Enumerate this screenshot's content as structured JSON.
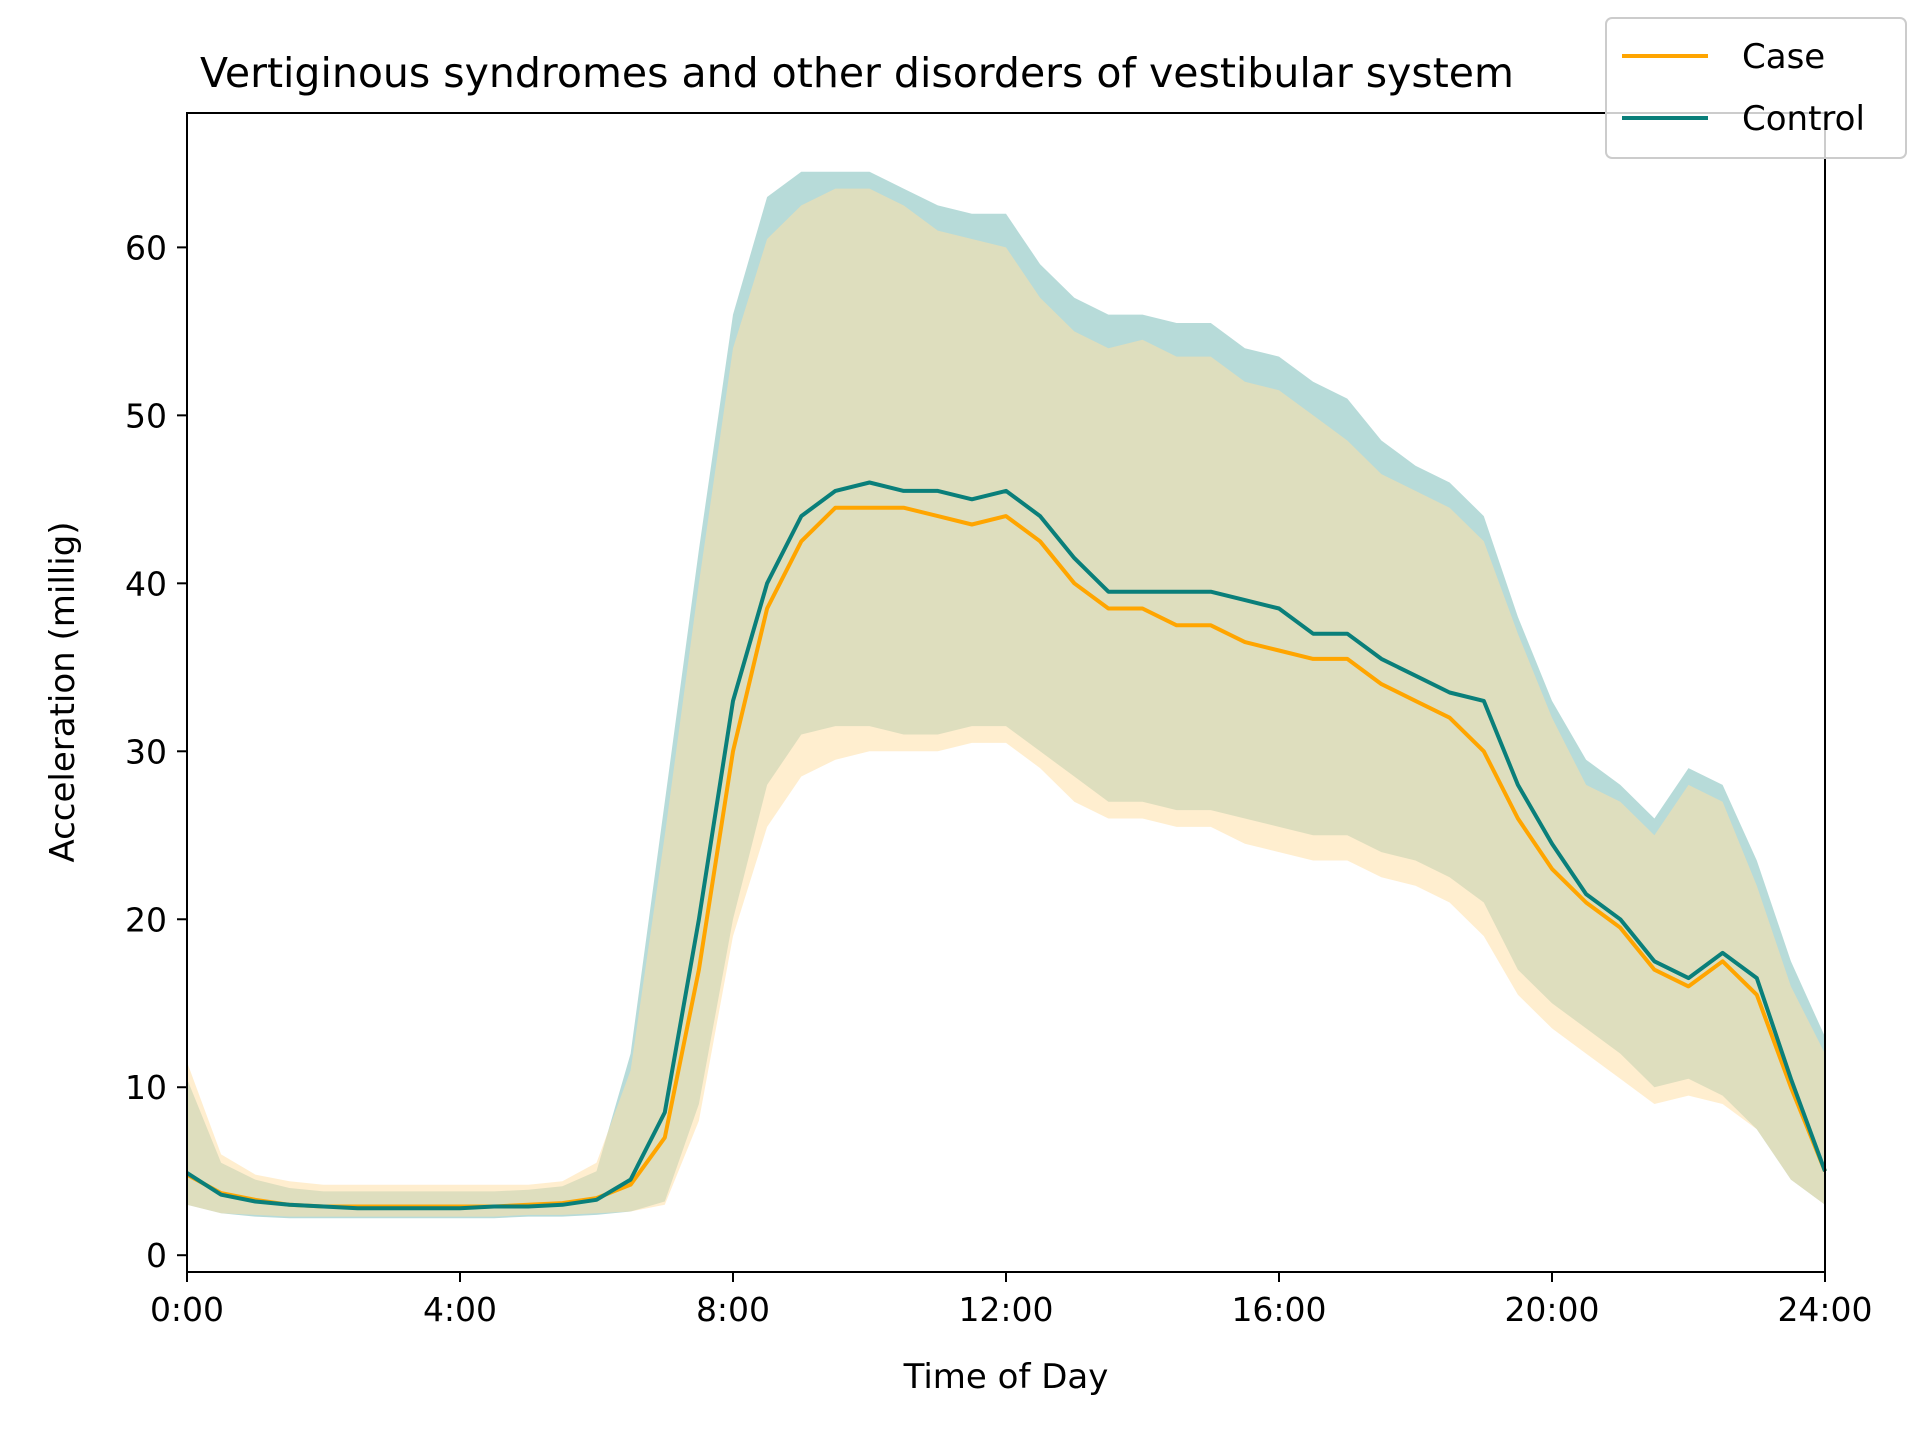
{
  "chart_data": {
    "type": "line",
    "title": "Vertiginous syndromes and other disorders of vestibular system",
    "xlabel": "Time of Day",
    "ylabel": "Acceleration (millig)",
    "xlim": [
      0,
      24
    ],
    "ylim": [
      -1,
      68
    ],
    "x_ticks": [
      0,
      4,
      8,
      12,
      16,
      20,
      24
    ],
    "x_tick_labels": [
      "0:00",
      "4:00",
      "8:00",
      "12:00",
      "16:00",
      "20:00",
      "24:00"
    ],
    "y_ticks": [
      0,
      10,
      20,
      30,
      40,
      50,
      60
    ],
    "y_tick_labels": [
      "0",
      "10",
      "20",
      "30",
      "40",
      "50",
      "60"
    ],
    "grid": false,
    "legend_position": "top-right",
    "x": [
      0,
      0.5,
      1,
      1.5,
      2,
      2.5,
      3,
      3.5,
      4,
      4.5,
      5,
      5.5,
      6,
      6.5,
      7,
      7.5,
      8,
      8.5,
      9,
      9.5,
      10,
      10.5,
      11,
      11.5,
      12,
      12.5,
      13,
      13.5,
      14,
      14.5,
      15,
      15.5,
      16,
      16.5,
      17,
      17.5,
      18,
      18.5,
      19,
      19.5,
      20,
      20.5,
      21,
      21.5,
      22,
      22.5,
      23,
      23.5,
      24
    ],
    "series": [
      {
        "name": "Case",
        "color": "#FFA500",
        "band_color": "#FFE0A8",
        "mean": [
          4.8,
          3.7,
          3.3,
          3.0,
          2.9,
          2.9,
          2.9,
          2.9,
          2.9,
          2.9,
          3.0,
          3.1,
          3.4,
          4.2,
          7.0,
          17.0,
          30.0,
          38.5,
          42.5,
          44.5,
          44.5,
          44.5,
          44.0,
          43.5,
          44.0,
          42.5,
          40.0,
          38.5,
          38.5,
          37.5,
          37.5,
          36.5,
          36.0,
          35.5,
          35.5,
          34.0,
          33.0,
          32.0,
          30.0,
          26.0,
          23.0,
          21.0,
          19.5,
          17.0,
          16.0,
          17.5,
          15.5,
          10.0,
          5.0
        ],
        "lower": [
          3.0,
          2.5,
          2.4,
          2.3,
          2.3,
          2.3,
          2.3,
          2.3,
          2.3,
          2.3,
          2.4,
          2.4,
          2.5,
          2.6,
          3.0,
          8.0,
          19.0,
          25.5,
          28.5,
          29.5,
          30.0,
          30.0,
          30.0,
          30.5,
          30.5,
          29.0,
          27.0,
          26.0,
          26.0,
          25.5,
          25.5,
          24.5,
          24.0,
          23.5,
          23.5,
          22.5,
          22.0,
          21.0,
          19.0,
          15.5,
          13.5,
          12.0,
          10.5,
          9.0,
          9.5,
          9.0,
          7.5,
          4.5,
          3.0
        ],
        "upper": [
          11.5,
          6.0,
          4.8,
          4.4,
          4.2,
          4.2,
          4.2,
          4.2,
          4.2,
          4.2,
          4.2,
          4.4,
          5.5,
          11.0,
          25.0,
          40.0,
          54.0,
          60.5,
          62.5,
          63.5,
          63.5,
          62.5,
          61.0,
          60.5,
          60.0,
          57.0,
          55.0,
          54.0,
          54.5,
          53.5,
          53.5,
          52.0,
          51.5,
          50.0,
          48.5,
          46.5,
          45.5,
          44.5,
          42.5,
          37.0,
          32.0,
          28.0,
          27.0,
          25.0,
          28.0,
          27.0,
          22.0,
          16.0,
          12.0
        ]
      },
      {
        "name": "Control",
        "color": "#0A7F7A",
        "band_color": "#9FCFCC",
        "mean": [
          4.9,
          3.6,
          3.2,
          3.0,
          2.9,
          2.8,
          2.8,
          2.8,
          2.8,
          2.9,
          2.9,
          3.0,
          3.3,
          4.5,
          8.5,
          20.0,
          33.0,
          40.0,
          44.0,
          45.5,
          46.0,
          45.5,
          45.5,
          45.0,
          45.5,
          44.0,
          41.5,
          39.5,
          39.5,
          39.5,
          39.5,
          39.0,
          38.5,
          37.0,
          37.0,
          35.5,
          34.5,
          33.5,
          33.0,
          28.0,
          24.5,
          21.5,
          20.0,
          17.5,
          16.5,
          18.0,
          16.5,
          10.5,
          5.0
        ],
        "lower": [
          3.0,
          2.5,
          2.3,
          2.2,
          2.2,
          2.2,
          2.2,
          2.2,
          2.2,
          2.2,
          2.3,
          2.3,
          2.4,
          2.6,
          3.2,
          9.0,
          20.0,
          28.0,
          31.0,
          31.5,
          31.5,
          31.0,
          31.0,
          31.5,
          31.5,
          30.0,
          28.5,
          27.0,
          27.0,
          26.5,
          26.5,
          26.0,
          25.5,
          25.0,
          25.0,
          24.0,
          23.5,
          22.5,
          21.0,
          17.0,
          15.0,
          13.5,
          12.0,
          10.0,
          10.5,
          9.5,
          7.5,
          4.5,
          3.0
        ],
        "upper": [
          10.5,
          5.5,
          4.5,
          4.0,
          3.8,
          3.8,
          3.8,
          3.8,
          3.8,
          3.8,
          3.9,
          4.1,
          5.0,
          12.0,
          27.0,
          42.0,
          56.0,
          63.0,
          64.5,
          64.5,
          64.5,
          63.5,
          62.5,
          62.0,
          62.0,
          59.0,
          57.0,
          56.0,
          56.0,
          55.5,
          55.5,
          54.0,
          53.5,
          52.0,
          51.0,
          48.5,
          47.0,
          46.0,
          44.0,
          38.0,
          33.0,
          29.5,
          28.0,
          26.0,
          29.0,
          28.0,
          23.5,
          17.5,
          13.0
        ]
      }
    ]
  }
}
